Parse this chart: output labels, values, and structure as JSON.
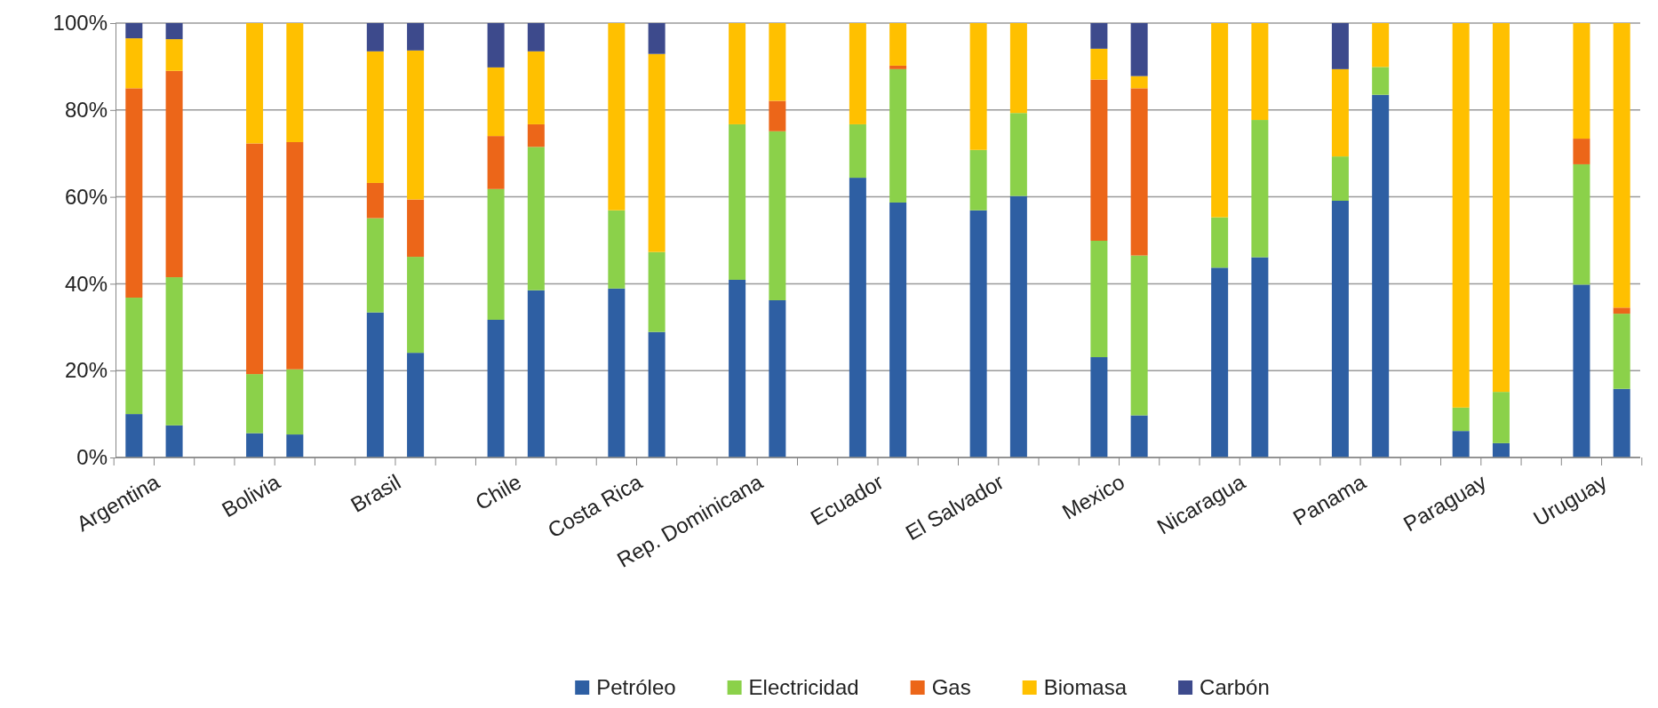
{
  "chart_data": {
    "type": "bar",
    "stacked": true,
    "categories": [
      null,
      "Argentina",
      null,
      null,
      "Bolivia",
      null,
      null,
      "Brasil",
      null,
      null,
      "Chile",
      null,
      null,
      "Costa Rica",
      null,
      null,
      "Rep. Dominicana",
      null,
      null,
      "Ecuador",
      null,
      null,
      "El Salvador",
      null,
      null,
      "Mexico",
      null,
      null,
      "Nicaragua",
      null,
      null,
      "Panama",
      null,
      null,
      "Paraguay",
      null,
      null,
      "Uruguay"
    ],
    "series": [
      {
        "name": "Petróleo",
        "color": "#2e5fa3",
        "values": [
          10,
          7.4,
          null,
          5.6,
          5.3,
          null,
          33.4,
          24.1,
          null,
          31.7,
          38.5,
          null,
          38.9,
          28.9,
          null,
          40.9,
          36.2,
          null,
          64.4,
          58.7,
          null,
          56.9,
          60.2,
          null,
          23.1,
          9.7,
          null,
          43.7,
          46.1,
          null,
          59.1,
          83.5,
          null,
          6.1,
          3.3,
          null,
          39.8,
          15.8
        ]
      },
      {
        "name": "Electricidad",
        "color": "#8bd14a",
        "values": [
          26.8,
          34.1,
          null,
          13.6,
          15,
          null,
          21.7,
          22.1,
          null,
          30.1,
          33,
          null,
          18,
          18.4,
          null,
          35.8,
          38.9,
          null,
          12.3,
          30.7,
          null,
          13.9,
          19.1,
          null,
          26.8,
          36.8,
          null,
          11.6,
          31.6,
          null,
          10.2,
          6.4,
          null,
          5.4,
          11.8,
          null,
          27.7,
          17.3
        ]
      },
      {
        "name": "Gas",
        "color": "#ec6619",
        "values": [
          48.2,
          47.5,
          null,
          53.1,
          52.3,
          null,
          8.1,
          13.2,
          null,
          12.2,
          5.2,
          null,
          0,
          0,
          null,
          0,
          7,
          null,
          0,
          0.8,
          null,
          0,
          0,
          null,
          37.1,
          38.5,
          null,
          0,
          0,
          null,
          0,
          0,
          null,
          0,
          0,
          null,
          5.9,
          1.4
        ]
      },
      {
        "name": "Biomasa",
        "color": "#ffc000",
        "values": [
          11.5,
          7.3,
          null,
          27.7,
          27.4,
          null,
          30.3,
          34.3,
          null,
          15.8,
          16.8,
          null,
          43.1,
          45.6,
          null,
          23.3,
          17.9,
          null,
          23.3,
          9.8,
          null,
          29.2,
          20.7,
          null,
          7.1,
          2.8,
          null,
          44.7,
          22.3,
          null,
          20.1,
          10.1,
          null,
          88.5,
          84.9,
          null,
          26.6,
          65.5
        ]
      },
      {
        "name": "Carbón",
        "color": "#3d4a8c",
        "values": [
          3.5,
          3.7,
          null,
          0,
          0,
          null,
          6.5,
          6.3,
          null,
          10.2,
          6.5,
          null,
          0,
          7.1,
          null,
          0,
          0,
          null,
          0,
          0,
          null,
          0,
          0,
          null,
          5.9,
          12.2,
          null,
          0,
          0,
          null,
          10.6,
          0,
          null,
          0,
          0,
          null,
          0,
          0
        ]
      }
    ],
    "ylim": [
      0,
      100
    ],
    "yticks": [
      {
        "value": 0,
        "label": "0%"
      },
      {
        "value": 20,
        "label": "20%"
      },
      {
        "value": 40,
        "label": "40%"
      },
      {
        "value": 60,
        "label": "60%"
      },
      {
        "value": 80,
        "label": "80%"
      },
      {
        "value": 100,
        "label": "100%"
      }
    ],
    "grid": "y",
    "legend": "bottom"
  }
}
